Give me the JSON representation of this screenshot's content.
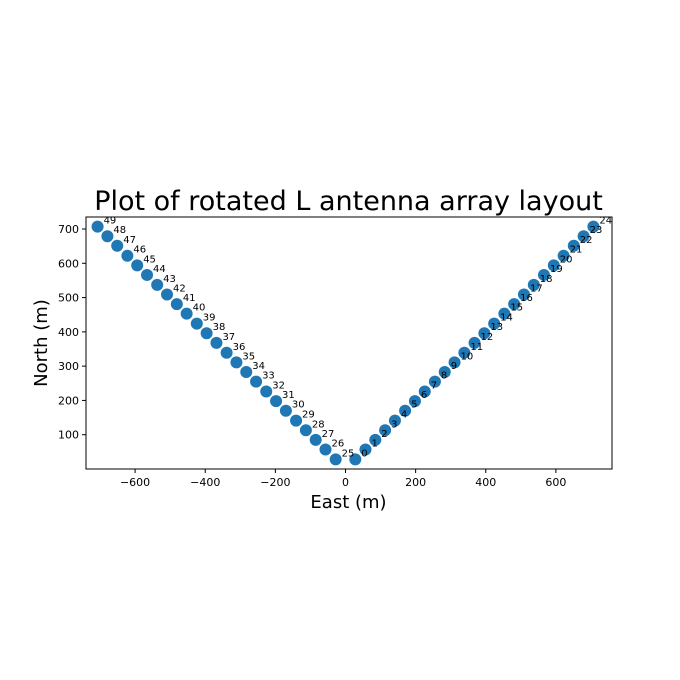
{
  "chart_data": {
    "type": "scatter",
    "title": "Plot of rotated L antenna array layout",
    "xlabel": "East (m)",
    "ylabel": "North (m)",
    "xlim": [
      -740,
      760
    ],
    "ylim": [
      0,
      735
    ],
    "xticks": [
      -600,
      -400,
      -200,
      0,
      200,
      400,
      600
    ],
    "xtick_labels": [
      "−600",
      "−400",
      "−200",
      "0",
      "200",
      "400",
      "600"
    ],
    "yticks": [
      100,
      200,
      300,
      400,
      500,
      600,
      700
    ],
    "ytick_labels": [
      "100",
      "200",
      "300",
      "400",
      "500",
      "600",
      "700"
    ],
    "grid": false,
    "marker_color": "#1f77b4",
    "series": [
      {
        "labels": [
          "0",
          "1",
          "2",
          "3",
          "4",
          "5",
          "6",
          "7",
          "8",
          "9",
          "10",
          "11",
          "12",
          "13",
          "14",
          "15",
          "16",
          "17",
          "18",
          "19",
          "20",
          "21",
          "22",
          "23",
          "24",
          "25",
          "26",
          "27",
          "28",
          "29",
          "30",
          "31",
          "32",
          "33",
          "34",
          "35",
          "36",
          "37",
          "38",
          "39",
          "40",
          "41",
          "42",
          "43",
          "44",
          "45",
          "46",
          "47",
          "48",
          "49"
        ],
        "x": [
          28,
          57,
          85,
          113,
          141,
          170,
          198,
          226,
          255,
          283,
          311,
          339,
          368,
          396,
          424,
          453,
          481,
          509,
          537,
          566,
          594,
          622,
          651,
          679,
          707,
          -28,
          -57,
          -85,
          -113,
          -141,
          -170,
          -198,
          -226,
          -255,
          -283,
          -311,
          -339,
          -368,
          -396,
          -424,
          -453,
          -481,
          -509,
          -537,
          -566,
          -594,
          -622,
          -651,
          -679,
          -707
        ],
        "y": [
          28,
          57,
          85,
          113,
          141,
          170,
          198,
          226,
          255,
          283,
          311,
          339,
          368,
          396,
          424,
          453,
          481,
          509,
          537,
          566,
          594,
          622,
          651,
          679,
          707,
          28,
          57,
          85,
          113,
          141,
          170,
          198,
          226,
          255,
          283,
          311,
          339,
          368,
          396,
          424,
          453,
          481,
          509,
          537,
          566,
          594,
          622,
          651,
          679,
          707
        ]
      }
    ]
  }
}
